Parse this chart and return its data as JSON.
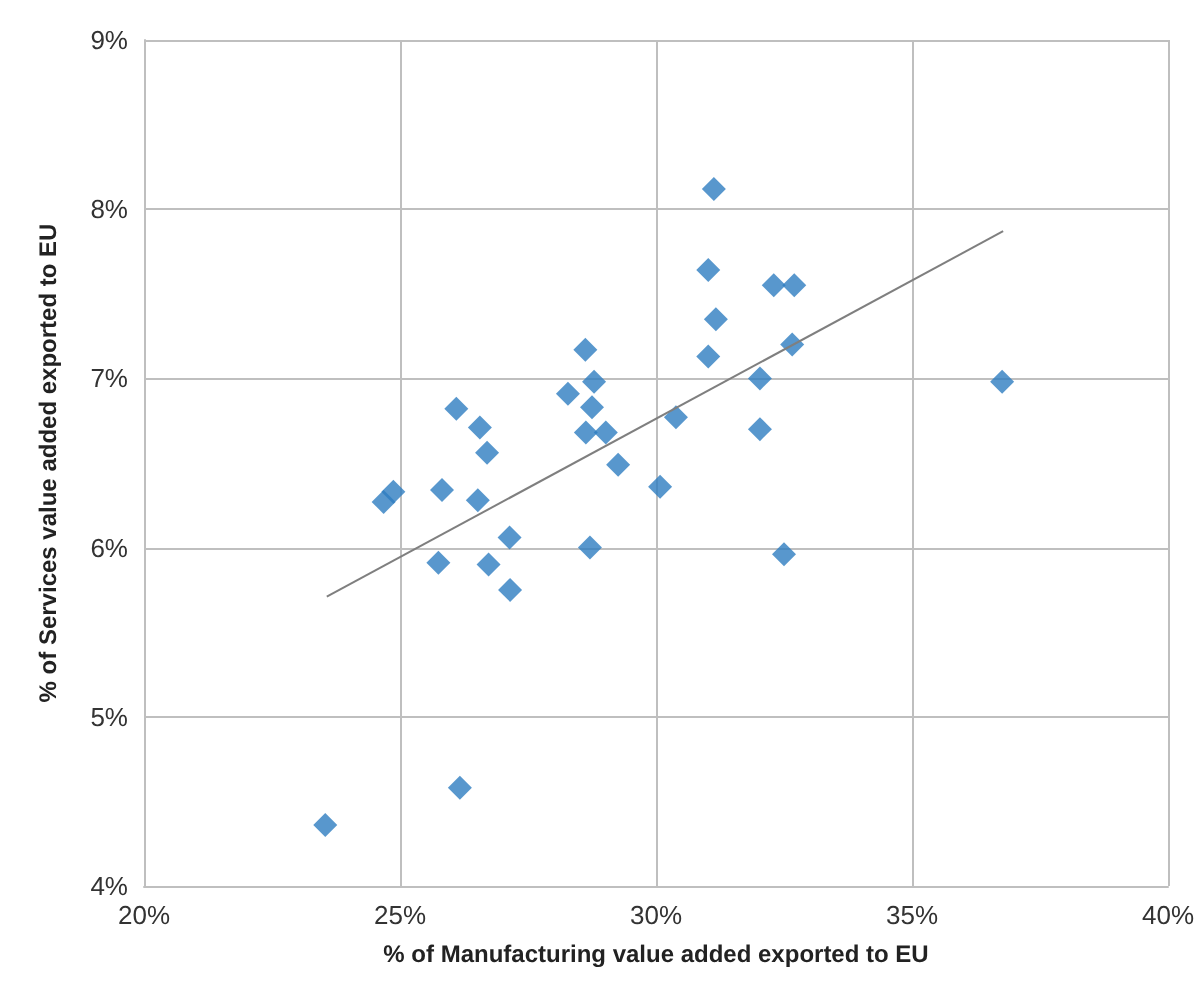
{
  "chart_data": {
    "type": "scatter",
    "xlabel": "% of Manufacturing value added exported to EU",
    "ylabel": "% of Services value added exported to EU",
    "xlim": [
      20,
      40
    ],
    "ylim": [
      4,
      9
    ],
    "xticks": [
      {
        "value": 20,
        "label": "20%"
      },
      {
        "value": 25,
        "label": "25%"
      },
      {
        "value": 30,
        "label": "30%"
      },
      {
        "value": 35,
        "label": "35%"
      },
      {
        "value": 40,
        "label": "40%"
      }
    ],
    "yticks": [
      {
        "value": 4,
        "label": "4%"
      },
      {
        "value": 5,
        "label": "5%"
      },
      {
        "value": 6,
        "label": "6%"
      },
      {
        "value": 7,
        "label": "7%"
      },
      {
        "value": 8,
        "label": "8%"
      },
      {
        "value": 9,
        "label": "9%"
      }
    ],
    "grid": true,
    "series": [
      {
        "marker": "diamond",
        "color": "#2e7dc0",
        "x": [
          23.54,
          26.17,
          24.68,
          24.87,
          25.82,
          25.75,
          26.1,
          26.56,
          26.7,
          26.52,
          27.14,
          26.73,
          27.15,
          28.62,
          28.28,
          28.79,
          28.75,
          28.63,
          29.02,
          29.26,
          30.08,
          30.39,
          28.71,
          31.02,
          31.13,
          31.17,
          31.02,
          32.3,
          32.7,
          32.66,
          32.03,
          32.03,
          32.5,
          36.76
        ],
        "values": [
          4.36,
          4.58,
          6.27,
          6.33,
          6.34,
          5.91,
          6.82,
          6.71,
          6.56,
          6.28,
          6.06,
          5.9,
          5.75,
          7.17,
          6.91,
          6.98,
          6.83,
          6.68,
          6.68,
          6.49,
          6.36,
          6.77,
          6.0,
          7.64,
          8.12,
          7.35,
          7.13,
          7.55,
          7.55,
          7.2,
          7.0,
          6.7,
          5.96,
          6.98
        ]
      },
      {
        "type": "line",
        "marker": "none",
        "line_style": "solid",
        "color": "#7f7f7f",
        "x": [
          23.57,
          36.78
        ],
        "values": [
          5.71,
          7.87
        ]
      }
    ]
  }
}
